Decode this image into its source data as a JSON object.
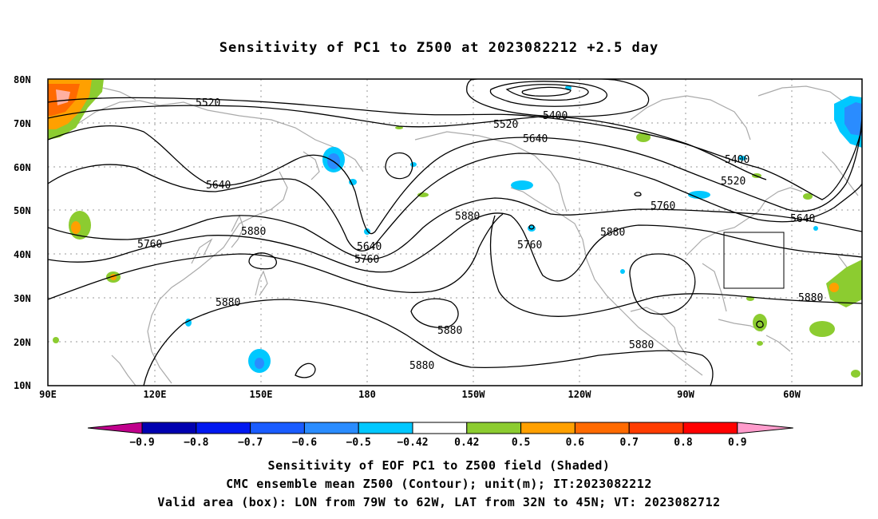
{
  "title": "Sensitivity of PC1 to Z500 at 2023082212 +2.5 day",
  "lat_labels": [
    "80N",
    "70N",
    "60N",
    "50N",
    "40N",
    "30N",
    "20N",
    "10N"
  ],
  "lon_labels": [
    "90E",
    "120E",
    "150E",
    "180",
    "150W",
    "120W",
    "90W",
    "60W"
  ],
  "contour_labels": [
    "5520",
    "5400",
    "5520",
    "5640",
    "5400",
    "5520",
    "5640",
    "5760",
    "5640",
    "5880",
    "5880",
    "5760",
    "5640",
    "5760",
    "5880",
    "5760",
    "5880",
    "5880",
    "5880",
    "5880",
    "5880"
  ],
  "colorbar": {
    "labels": [
      "-0.9",
      "-0.8",
      "-0.7",
      "-0.6",
      "-0.5",
      "-0.42",
      "0.42",
      "0.5",
      "0.6",
      "0.7",
      "0.8",
      "0.9"
    ],
    "colors": [
      "#c0008c",
      "#0000b0",
      "#0018f0",
      "#1a5cff",
      "#2a8cff",
      "#00c8ff",
      "#ffffff",
      "#8ccc30",
      "#ffa000",
      "#ff6a00",
      "#ff3c00",
      "#ff0000",
      "#ff9ccc"
    ]
  },
  "footer": {
    "line1": "Sensitivity of EOF PC1 to Z500 field (Shaded)",
    "line2": "CMC ensemble mean Z500 (Contour); unit(m); IT:2023082212",
    "line3": "Valid area (box): LON from 79W to 62W, LAT from 32N to 45N; VT: 2023082712"
  }
}
